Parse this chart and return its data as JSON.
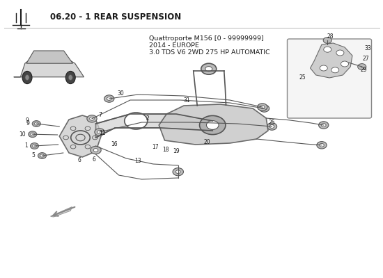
{
  "title": "06.20 - 1 REAR SUSPENSION",
  "car_model_line1": "Quattroporte M156 [0 - 99999999]",
  "car_model_line2": "2014 - EUROPE",
  "car_model_line3": "3.0 TDS V6 2WD 275 HP AUTOMATIC",
  "bg_color": "#ffffff",
  "text_color": "#1a1a1a",
  "diagram_color": "#555555",
  "line_color": "#888888"
}
